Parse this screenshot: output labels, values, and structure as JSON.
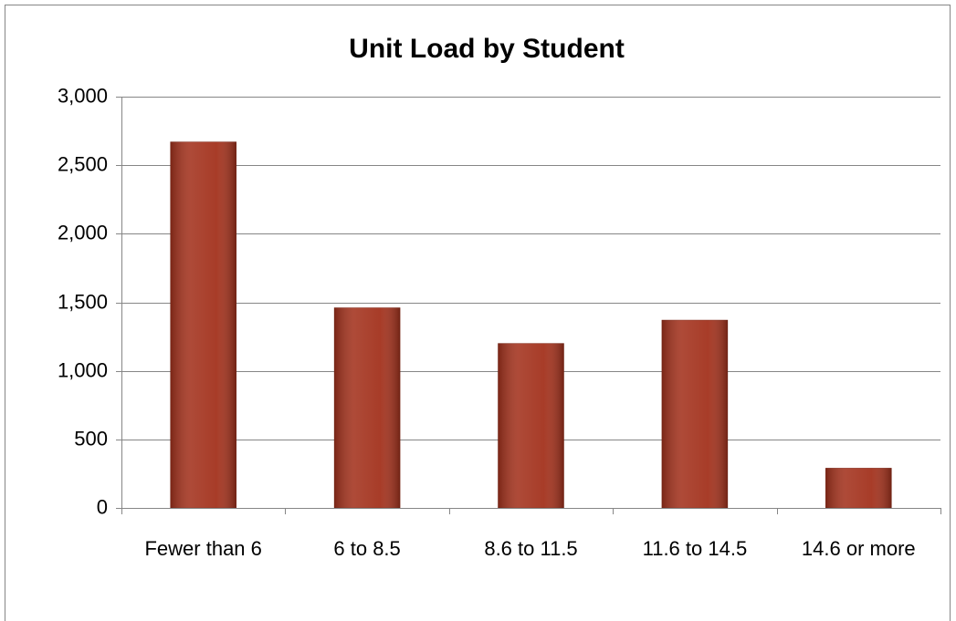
{
  "chart_data": {
    "type": "bar",
    "title": "Unit Load by Student",
    "categories": [
      "Fewer than 6",
      "6 to 8.5",
      "8.6 to 11.5",
      "11.6 to 14.5",
      "14.6 or more"
    ],
    "values": [
      2670,
      1460,
      1200,
      1370,
      290
    ],
    "color": "#a3321d",
    "ylim": [
      0,
      3000
    ],
    "yticks": [
      0,
      500,
      {
        "value": 1000,
        "label": "1,000"
      },
      {
        "value": 1500,
        "label": "1,500"
      },
      {
        "value": 2000,
        "label": "2,000"
      },
      {
        "value": 2500,
        "label": "2,500"
      },
      {
        "value": 3000,
        "label": "3,000"
      }
    ],
    "grid": true
  }
}
